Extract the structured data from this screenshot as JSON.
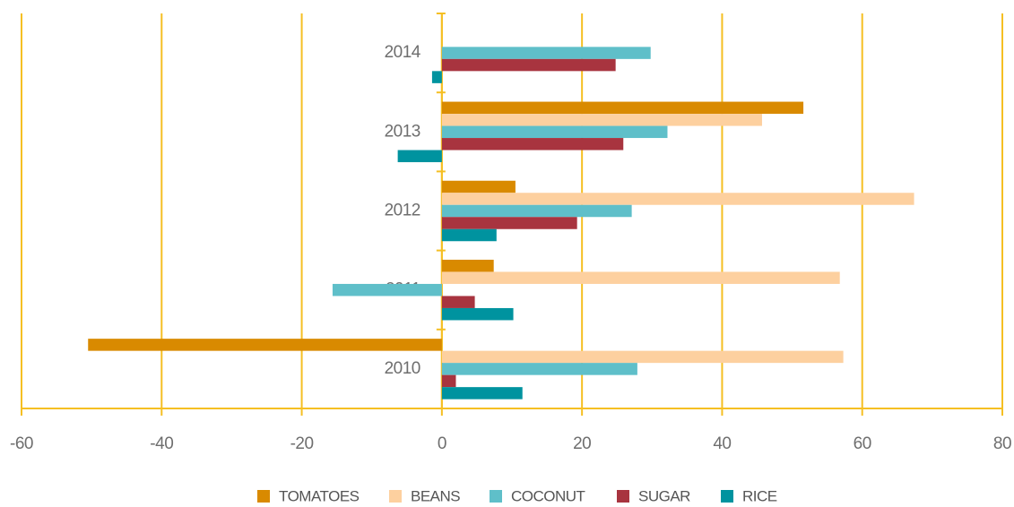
{
  "chart_data": {
    "type": "bar",
    "orientation": "horizontal",
    "categories": [
      "2010",
      "2011",
      "2012",
      "2013",
      "2014"
    ],
    "series": [
      {
        "name": "TOMATOES",
        "color": "#d98a00",
        "values": [
          -50.5,
          7.4,
          10.5,
          51.6,
          null
        ]
      },
      {
        "name": "BEANS",
        "color": "#fdd09f",
        "values": [
          57.3,
          56.8,
          67.4,
          45.7,
          null
        ]
      },
      {
        "name": "COCONUT",
        "color": "#5fbfc9",
        "values": [
          27.9,
          -15.6,
          27.1,
          32.2,
          29.8
        ]
      },
      {
        "name": "SUGAR",
        "color": "#a8343f",
        "values": [
          2,
          4.7,
          19.3,
          25.9,
          24.8
        ]
      },
      {
        "name": "RICE",
        "color": "#00939f",
        "values": [
          11.5,
          10.2,
          7.8,
          -6.3,
          -1.4
        ]
      }
    ],
    "xlim": [
      -60,
      80
    ],
    "xticks": [
      -60,
      -40,
      -20,
      0,
      20,
      40,
      60,
      80
    ],
    "grid": true,
    "grid_color": "#f5bf23",
    "legend": "bottom"
  }
}
